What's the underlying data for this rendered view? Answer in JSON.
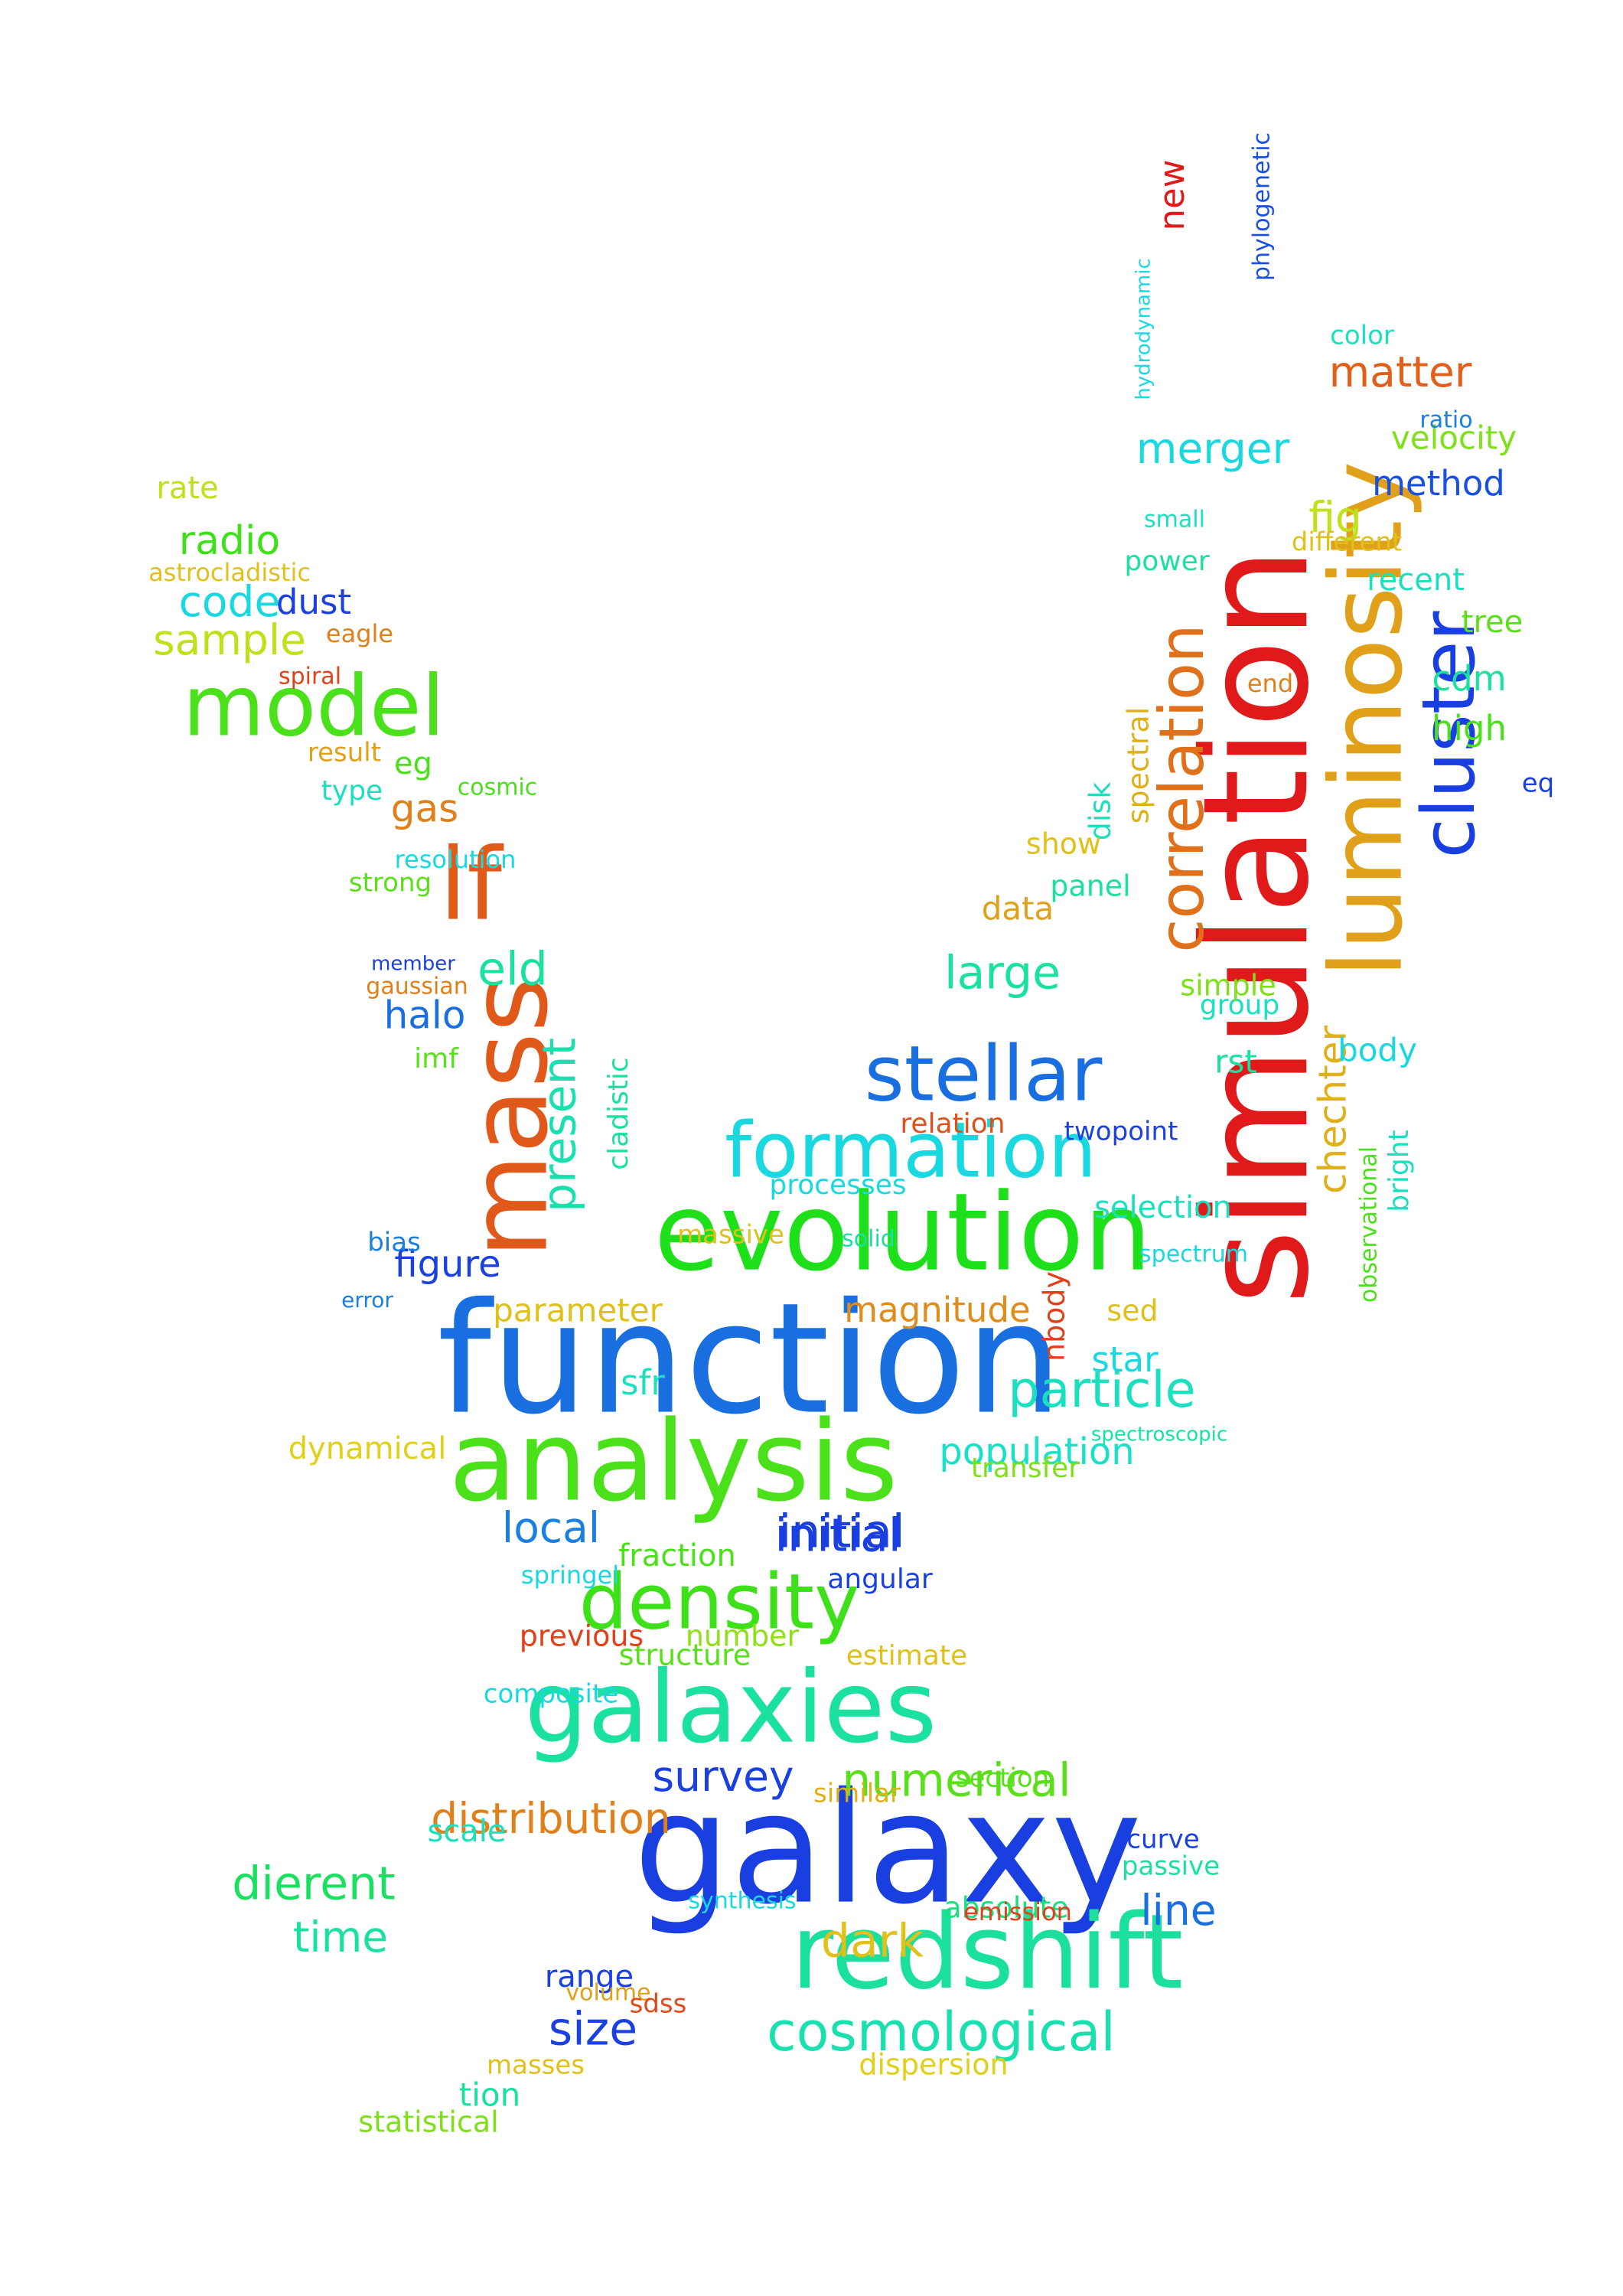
{
  "cloud": {
    "words": [
      {
        "text": "function",
        "color": "#1a6fe0"
      },
      {
        "text": "galaxy",
        "color": "#1a3fe0"
      },
      {
        "text": "simulation",
        "color": "#e01a1a"
      },
      {
        "text": "evolution",
        "color": "#1ee01a"
      },
      {
        "text": "analysis",
        "color": "#4ae01a"
      },
      {
        "text": "luminosity",
        "color": "#e0a01a"
      },
      {
        "text": "galaxies",
        "color": "#1ae0a0"
      },
      {
        "text": "redshift",
        "color": "#1ae09c"
      },
      {
        "text": "mass",
        "color": "#e0581a"
      },
      {
        "text": "formation",
        "color": "#1ad8e0"
      },
      {
        "text": "stellar",
        "color": "#1a6fe0"
      },
      {
        "text": "cluster",
        "color": "#1a3fe0"
      },
      {
        "text": "correlation",
        "color": "#e0701a"
      },
      {
        "text": "density",
        "color": "#3ee01a"
      },
      {
        "text": "model",
        "color": "#4ae01a"
      },
      {
        "text": "lf",
        "color": "#e05a1a"
      },
      {
        "text": "cosmological",
        "color": "#1ae0b0"
      },
      {
        "text": "distribution",
        "color": "#e0801a"
      },
      {
        "text": "particle",
        "color": "#1ae0c0"
      },
      {
        "text": "numerical",
        "color": "#5ae01a"
      },
      {
        "text": "initial",
        "color": "#1a3fe0"
      },
      {
        "text": "population",
        "color": "#1ae0c8"
      },
      {
        "text": "survey",
        "color": "#1a40e0"
      },
      {
        "text": "present",
        "color": "#1ae0b0"
      },
      {
        "text": "matter",
        "color": "#e0601a"
      },
      {
        "text": "merger",
        "color": "#1ad8e0"
      },
      {
        "text": "chechter",
        "color": "#e0b01a"
      },
      {
        "text": "dark",
        "color": "#e0c01a"
      },
      {
        "text": "line",
        "color": "#1a70e0"
      },
      {
        "text": "size",
        "color": "#1a40e0"
      },
      {
        "text": "time",
        "color": "#1ae0a0"
      },
      {
        "text": "dierent",
        "color": "#1ae060"
      },
      {
        "text": "figure",
        "color": "#1a40e0"
      },
      {
        "text": "large",
        "color": "#1ae0a0"
      },
      {
        "text": "local",
        "color": "#1a80e0"
      },
      {
        "text": "magnitude",
        "color": "#e08c1a"
      },
      {
        "text": "parameter",
        "color": "#e0c01a"
      },
      {
        "text": "dynamical",
        "color": "#e0d01a"
      },
      {
        "text": "sample",
        "color": "#c0e01a"
      },
      {
        "text": "code",
        "color": "#1ad8e0"
      },
      {
        "text": "radio",
        "color": "#3ee01a"
      },
      {
        "text": "halo",
        "color": "#1a6fe0"
      },
      {
        "text": "eld",
        "color": "#1ae0a0"
      },
      {
        "text": "gas",
        "color": "#e0801a"
      },
      {
        "text": "velocity",
        "color": "#7ee01a"
      },
      {
        "text": "data",
        "color": "#e0a01a"
      },
      {
        "text": "fig",
        "color": "#c0e01a"
      },
      {
        "text": "method",
        "color": "#1a50e0"
      },
      {
        "text": "high",
        "color": "#4ae01a"
      },
      {
        "text": "cdm",
        "color": "#1ae0a0"
      },
      {
        "text": "selection",
        "color": "#1ae0c0"
      },
      {
        "text": "relation",
        "color": "#e0501a"
      },
      {
        "text": "structure",
        "color": "#5ae01a"
      },
      {
        "text": "number",
        "color": "#8ee01a"
      },
      {
        "text": "fraction",
        "color": "#4ae01a"
      },
      {
        "text": "previous",
        "color": "#e0401a"
      },
      {
        "text": "scale",
        "color": "#1ae0c0"
      },
      {
        "text": "absolute",
        "color": "#1ae080"
      },
      {
        "text": "range",
        "color": "#1a40e0"
      },
      {
        "text": "statistical",
        "color": "#7ee01a"
      },
      {
        "text": "tion",
        "color": "#1ae0a0"
      },
      {
        "text": "masses",
        "color": "#e0c01a"
      },
      {
        "text": "dispersion",
        "color": "#e0d01a"
      },
      {
        "text": "similar",
        "color": "#e0b01a"
      },
      {
        "text": "section",
        "color": "#5ae01a"
      },
      {
        "text": "passive",
        "color": "#1ae0a0"
      },
      {
        "text": "curve",
        "color": "#1a40e0"
      },
      {
        "text": "star",
        "color": "#1ad8e0"
      },
      {
        "text": "sfr",
        "color": "#1ae0c0"
      },
      {
        "text": "body",
        "color": "#1ad8e0"
      },
      {
        "text": "group",
        "color": "#1ae0c0"
      },
      {
        "text": "bright",
        "color": "#1ae0c0"
      },
      {
        "text": "observational",
        "color": "#4ae01a"
      },
      {
        "text": "nbody",
        "color": "#e0401a"
      },
      {
        "text": "spectral",
        "color": "#e0b01a"
      },
      {
        "text": "disk",
        "color": "#1ae0c0"
      },
      {
        "text": "dust",
        "color": "#1a40e0"
      },
      {
        "text": "rate",
        "color": "#c0e01a"
      },
      {
        "text": "new",
        "color": "#e01a1a"
      },
      {
        "text": "phylogenetic",
        "color": "#1a50e0"
      },
      {
        "text": "hydrodynamic",
        "color": "#1ad8e0"
      },
      {
        "text": "astrocladistic",
        "color": "#e0c01a"
      },
      {
        "text": "cladistic",
        "color": "#1ae0a0"
      },
      {
        "text": "eagle",
        "color": "#e0801a"
      },
      {
        "text": "spiral",
        "color": "#e0401a"
      },
      {
        "text": "imf",
        "color": "#5ae01a"
      },
      {
        "text": "bias",
        "color": "#1a80e0"
      },
      {
        "text": "error",
        "color": "#1a80e0"
      },
      {
        "text": "strong",
        "color": "#5ae01a"
      },
      {
        "text": "resolution",
        "color": "#1ad8e0"
      },
      {
        "text": "eg",
        "color": "#4ae01a"
      },
      {
        "text": "type",
        "color": "#1ae0c0"
      },
      {
        "text": "result",
        "color": "#e0a01a"
      },
      {
        "text": "cosmic",
        "color": "#4ae01a"
      },
      {
        "text": "member",
        "color": "#1a40e0"
      },
      {
        "text": "gaussian",
        "color": "#e0801a"
      },
      {
        "text": "spectroscopic",
        "color": "#1ae0a0"
      },
      {
        "text": "sed",
        "color": "#e0c01a"
      },
      {
        "text": "panel",
        "color": "#1ae0a0"
      },
      {
        "text": "show",
        "color": "#e0c01a"
      },
      {
        "text": "twopoint",
        "color": "#1a40e0"
      },
      {
        "text": "rst",
        "color": "#1ae0a0"
      },
      {
        "text": "simple",
        "color": "#7ee01a"
      },
      {
        "text": "spectrum",
        "color": "#1ad8e0"
      },
      {
        "text": "transfer",
        "color": "#7ee01a"
      },
      {
        "text": "emission",
        "color": "#e0401a"
      },
      {
        "text": "synthesis",
        "color": "#1ad8e0"
      },
      {
        "text": "volume",
        "color": "#e0a01a"
      },
      {
        "text": "sdss",
        "color": "#e04a1a"
      },
      {
        "text": "angular",
        "color": "#1a40e0"
      },
      {
        "text": "springel",
        "color": "#1ad8e0"
      },
      {
        "text": "estimate",
        "color": "#e0c01a"
      },
      {
        "text": "composite",
        "color": "#1ad8e0"
      },
      {
        "text": "power",
        "color": "#1ae0a0"
      },
      {
        "text": "small",
        "color": "#1ae0c0"
      },
      {
        "text": "recent",
        "color": "#1ae0c0"
      },
      {
        "text": "different",
        "color": "#e0c01a"
      },
      {
        "text": "end",
        "color": "#e0801a"
      },
      {
        "text": "ratio",
        "color": "#1a80e0"
      },
      {
        "text": "color",
        "color": "#1ae0c0"
      },
      {
        "text": "tree",
        "color": "#5ae01a"
      },
      {
        "text": "eq",
        "color": "#1a40e0"
      },
      {
        "text": "massive",
        "color": "#e0c01a"
      },
      {
        "text": "solid",
        "color": "#1ae0a0"
      },
      {
        "text": "processes",
        "color": "#1ad8e0"
      },
      {
        "text": "initial",
        "color": "#1a3fe0"
      }
    ]
  }
}
